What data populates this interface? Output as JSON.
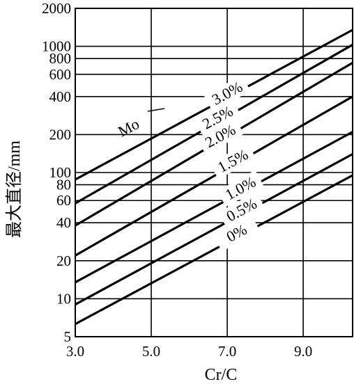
{
  "chart_data": {
    "type": "line",
    "title": "",
    "xlabel": "Cr/C",
    "ylabel": "最大直径/mm",
    "y_scale": "log",
    "xlim": [
      3.0,
      10.3
    ],
    "ylim": [
      5,
      2000
    ],
    "x_ticks": [
      "3.0",
      "5.0",
      "7.0",
      "9.0"
    ],
    "y_ticks": [
      "5",
      "10",
      "20",
      "40",
      "60",
      "80",
      "100",
      "200",
      "400",
      "600",
      "800",
      "1000",
      "2000"
    ],
    "legend_prefix": "Mo",
    "grid": true,
    "series": [
      {
        "name": "3.0%",
        "x": [
          3.0,
          10.3
        ],
        "y": [
          88,
          1350
        ]
      },
      {
        "name": "2.5%",
        "x": [
          3.0,
          10.3
        ],
        "y": [
          57,
          1030
        ]
      },
      {
        "name": "2.0%",
        "x": [
          3.0,
          10.3
        ],
        "y": [
          38,
          740
        ]
      },
      {
        "name": "1.5%",
        "x": [
          3.0,
          10.3
        ],
        "y": [
          22,
          400
        ]
      },
      {
        "name": "1.0%",
        "x": [
          3.0,
          10.3
        ],
        "y": [
          13.5,
          210
        ]
      },
      {
        "name": "0.5%",
        "x": [
          3.0,
          10.3
        ],
        "y": [
          9,
          140
        ]
      },
      {
        "name": "0%",
        "x": [
          3.0,
          10.3
        ],
        "y": [
          6.3,
          95
        ]
      }
    ]
  }
}
